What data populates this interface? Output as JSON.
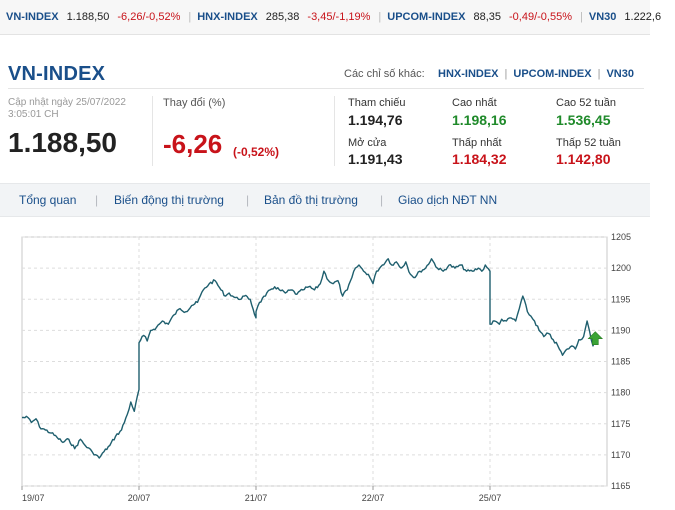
{
  "ticker": [
    {
      "name": "VN-INDEX",
      "value": "1.188,50",
      "change": "-6,26/-0,52%"
    },
    {
      "name": "HNX-INDEX",
      "value": "285,38",
      "change": "-3,45/-1,19%"
    },
    {
      "name": "UPCOM-INDEX",
      "value": "88,35",
      "change": "-0,49/-0,55%"
    },
    {
      "name": "VN30",
      "value": "1.222,6",
      "change": ""
    }
  ],
  "header": {
    "title": "VN-INDEX",
    "other_label": "Các chỉ số khác:",
    "other_links": [
      "HNX-INDEX",
      "UPCOM-INDEX",
      "VN30"
    ]
  },
  "summary": {
    "updated_line1": "Cập nhật ngày 25/07/2022",
    "updated_line2": "3:05:01 CH",
    "last_price": "1.188,50",
    "change_label": "Thay đổi (%)",
    "change_value": "-6,26",
    "change_pct": "(-0,52%)"
  },
  "stats": [
    {
      "label": "Tham chiếu",
      "value": "1.194,76",
      "color": "#222222"
    },
    {
      "label": "Cao nhất",
      "value": "1.198,16",
      "color": "#1f8a2a"
    },
    {
      "label": "Cao 52 tuần",
      "value": "1.536,45",
      "color": "#1f8a2a"
    },
    {
      "label": "Mở cửa",
      "value": "1.191,43",
      "color": "#222222"
    },
    {
      "label": "Thấp nhất",
      "value": "1.184,32",
      "color": "#c8131a"
    },
    {
      "label": "Thấp 52 tuần",
      "value": "1.142,80",
      "color": "#c8131a"
    }
  ],
  "tabs": [
    "Tổng quan",
    "Biến động thị trường",
    "Bản đồ thị trường",
    "Giao dịch NĐT NN"
  ],
  "colors": {
    "brand": "#1a4f8a",
    "down": "#c8131a",
    "up": "#1f8a2a",
    "line": "#1f5f6e",
    "marker": "#3aa335"
  },
  "chart_data": {
    "type": "line",
    "x_categories": [
      "19/07",
      "20/07",
      "21/07",
      "22/07",
      "25/07"
    ],
    "ylim": [
      1165,
      1205
    ],
    "yticks": [
      1205,
      1200,
      1195,
      1190,
      1185,
      1180,
      1175,
      1170,
      1165
    ],
    "grid": true,
    "marker_icon": "up-arrow-icon",
    "series": [
      {
        "name": "",
        "points": [
          [
            0.0,
            1176.0
          ],
          [
            0.05,
            1176.0
          ],
          [
            0.08,
            1175.2
          ],
          [
            0.12,
            1175.8
          ],
          [
            0.15,
            1174.5
          ],
          [
            0.2,
            1174.0
          ],
          [
            0.25,
            1173.5
          ],
          [
            0.3,
            1172.8
          ],
          [
            0.35,
            1172.0
          ],
          [
            0.4,
            1172.5
          ],
          [
            0.45,
            1171.0
          ],
          [
            0.5,
            1172.5
          ],
          [
            0.54,
            1171.5
          ],
          [
            0.6,
            1170.5
          ],
          [
            0.66,
            1169.5
          ],
          [
            0.7,
            1170.5
          ],
          [
            0.75,
            1171.5
          ],
          [
            0.8,
            1173.0
          ],
          [
            0.85,
            1174.0
          ],
          [
            0.9,
            1176.5
          ],
          [
            0.93,
            1178.5
          ],
          [
            0.96,
            1177.0
          ],
          [
            1.0,
            1180.5
          ],
          [
            1.0,
            1188.0
          ],
          [
            1.04,
            1189.2
          ],
          [
            1.07,
            1188.3
          ],
          [
            1.1,
            1190.0
          ],
          [
            1.15,
            1190.5
          ],
          [
            1.2,
            1191.5
          ],
          [
            1.25,
            1191.0
          ],
          [
            1.3,
            1192.5
          ],
          [
            1.35,
            1193.5
          ],
          [
            1.4,
            1193.0
          ],
          [
            1.45,
            1194.0
          ],
          [
            1.5,
            1194.5
          ],
          [
            1.55,
            1196.5
          ],
          [
            1.6,
            1197.5
          ],
          [
            1.65,
            1198.0
          ],
          [
            1.7,
            1196.5
          ],
          [
            1.74,
            1195.5
          ],
          [
            1.77,
            1196.0
          ],
          [
            1.8,
            1195.5
          ],
          [
            1.85,
            1195.0
          ],
          [
            1.9,
            1195.5
          ],
          [
            1.95,
            1195.0
          ],
          [
            2.0,
            1192.0
          ],
          [
            2.0,
            1193.0
          ],
          [
            2.03,
            1194.5
          ],
          [
            2.08,
            1195.5
          ],
          [
            2.12,
            1196.5
          ],
          [
            2.16,
            1197.0
          ],
          [
            2.2,
            1196.5
          ],
          [
            2.25,
            1196.0
          ],
          [
            2.3,
            1196.5
          ],
          [
            2.35,
            1195.8
          ],
          [
            2.4,
            1196.5
          ],
          [
            2.45,
            1197.0
          ],
          [
            2.5,
            1196.5
          ],
          [
            2.55,
            1197.5
          ],
          [
            2.58,
            1199.5
          ],
          [
            2.62,
            1198.0
          ],
          [
            2.66,
            1197.5
          ],
          [
            2.7,
            1198.0
          ],
          [
            2.74,
            1195.5
          ],
          [
            2.78,
            1196.5
          ],
          [
            2.82,
            1198.5
          ],
          [
            2.85,
            1200.0
          ],
          [
            2.88,
            1200.5
          ],
          [
            2.92,
            1199.5
          ],
          [
            2.96,
            1199.0
          ],
          [
            3.0,
            1197.5
          ],
          [
            3.03,
            1199.5
          ],
          [
            3.08,
            1200.5
          ],
          [
            3.13,
            1201.5
          ],
          [
            3.16,
            1200.5
          ],
          [
            3.2,
            1201.0
          ],
          [
            3.24,
            1200.0
          ],
          [
            3.28,
            1201.0
          ],
          [
            3.32,
            1199.0
          ],
          [
            3.36,
            1198.5
          ],
          [
            3.4,
            1199.5
          ],
          [
            3.45,
            1200.0
          ],
          [
            3.5,
            1201.5
          ],
          [
            3.55,
            1200.0
          ],
          [
            3.6,
            1199.5
          ],
          [
            3.65,
            1200.5
          ],
          [
            3.7,
            1200.0
          ],
          [
            3.75,
            1200.5
          ],
          [
            3.8,
            1199.5
          ],
          [
            3.85,
            1199.5
          ],
          [
            3.9,
            1200.0
          ],
          [
            3.93,
            1199.5
          ],
          [
            3.96,
            1200.5
          ],
          [
            4.0,
            1199.5
          ],
          [
            4.0,
            1191.0
          ],
          [
            4.04,
            1191.5
          ],
          [
            4.08,
            1191.0
          ],
          [
            4.1,
            1191.8
          ],
          [
            4.14,
            1191.5
          ],
          [
            4.18,
            1192.0
          ],
          [
            4.22,
            1191.5
          ],
          [
            4.28,
            1195.5
          ],
          [
            4.32,
            1193.0
          ],
          [
            4.38,
            1191.5
          ],
          [
            4.42,
            1190.0
          ],
          [
            4.46,
            1189.0
          ],
          [
            4.5,
            1189.5
          ],
          [
            4.54,
            1188.5
          ],
          [
            4.58,
            1187.5
          ],
          [
            4.62,
            1186.0
          ],
          [
            4.66,
            1187.0
          ],
          [
            4.7,
            1187.5
          ],
          [
            4.73,
            1187.0
          ],
          [
            4.76,
            1188.5
          ],
          [
            4.8,
            1189.0
          ],
          [
            4.83,
            1191.5
          ],
          [
            4.85,
            1190.0
          ],
          [
            4.88,
            1187.5
          ],
          [
            4.9,
            1188.5
          ]
        ]
      }
    ]
  }
}
